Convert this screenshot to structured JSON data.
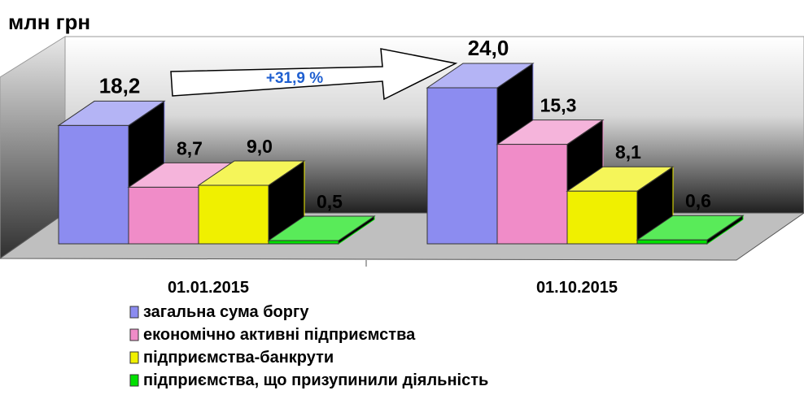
{
  "chart_data": {
    "type": "bar3d",
    "y_label": "млн грн",
    "annotation": "+31,9 %",
    "categories": [
      "01.01.2015",
      "01.10.2015"
    ],
    "ylim": [
      0,
      30
    ],
    "series": [
      {
        "name": "загальна сума боргу",
        "color": "#8c8cf0",
        "values": [
          18.2,
          24.0
        ],
        "value_labels": [
          "18,2",
          "24,0"
        ]
      },
      {
        "name": "економічно активні підприємства",
        "color": "#f08cc8",
        "values": [
          8.7,
          15.3
        ],
        "value_labels": [
          "8,7",
          "15,3"
        ]
      },
      {
        "name": "підприємства-банкрути",
        "color": "#f0f000",
        "values": [
          9.0,
          8.1
        ],
        "value_labels": [
          "9,0",
          "8,1"
        ]
      },
      {
        "name": "підприємства, що призупинили діяльність",
        "color": "#00e000",
        "values": [
          0.5,
          0.6
        ],
        "value_labels": [
          "0,5",
          "0,6"
        ]
      }
    ]
  }
}
